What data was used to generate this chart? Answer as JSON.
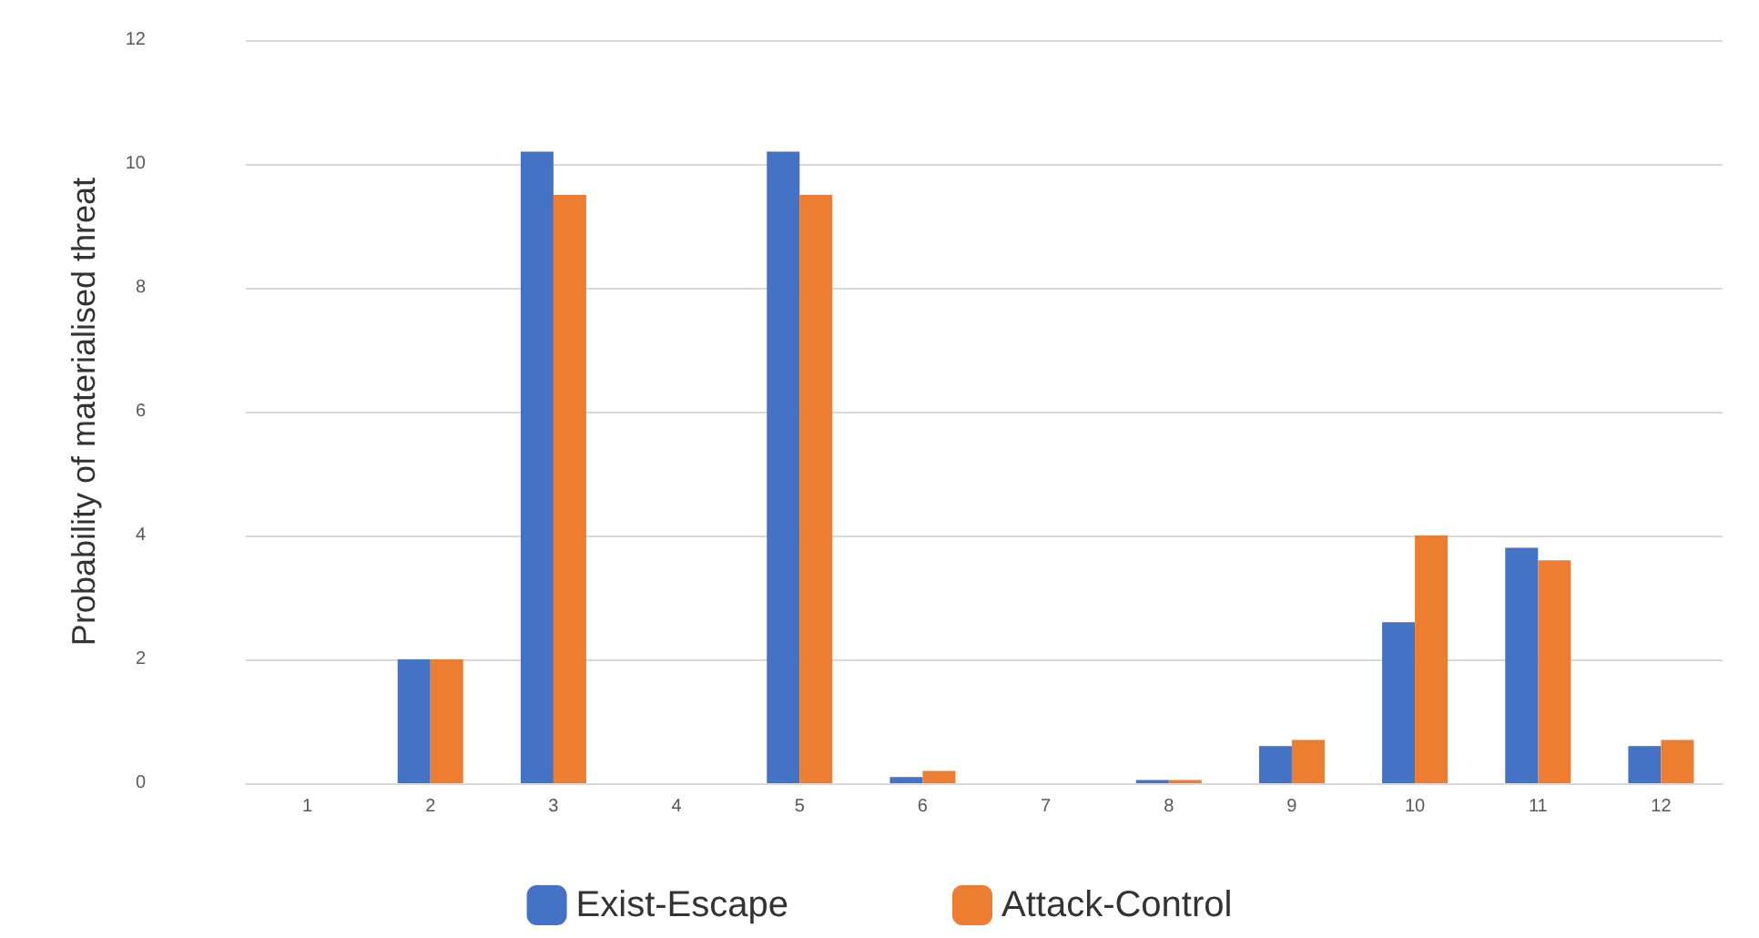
{
  "chart_data": {
    "type": "bar",
    "ylabel": "Probability of materialised threat",
    "categories": [
      "1",
      "2",
      "3",
      "4",
      "5",
      "6",
      "7",
      "8",
      "9",
      "10",
      "11",
      "12"
    ],
    "series": [
      {
        "name": "Exist-Escape",
        "color": "#4472c4",
        "values": [
          0,
          2.0,
          10.2,
          0,
          10.2,
          0.1,
          0,
          0.05,
          0.6,
          2.6,
          3.8,
          0.6
        ]
      },
      {
        "name": "Attack-Control",
        "color": "#ed7d31",
        "values": [
          0,
          2.0,
          9.5,
          0,
          9.5,
          0.2,
          0,
          0.05,
          0.7,
          4.0,
          3.6,
          0.7
        ]
      }
    ],
    "ylim": [
      0,
      12
    ],
    "yticks": [
      0,
      2,
      4,
      6,
      8,
      10,
      12
    ],
    "grid": "y",
    "legend": "bottom"
  }
}
